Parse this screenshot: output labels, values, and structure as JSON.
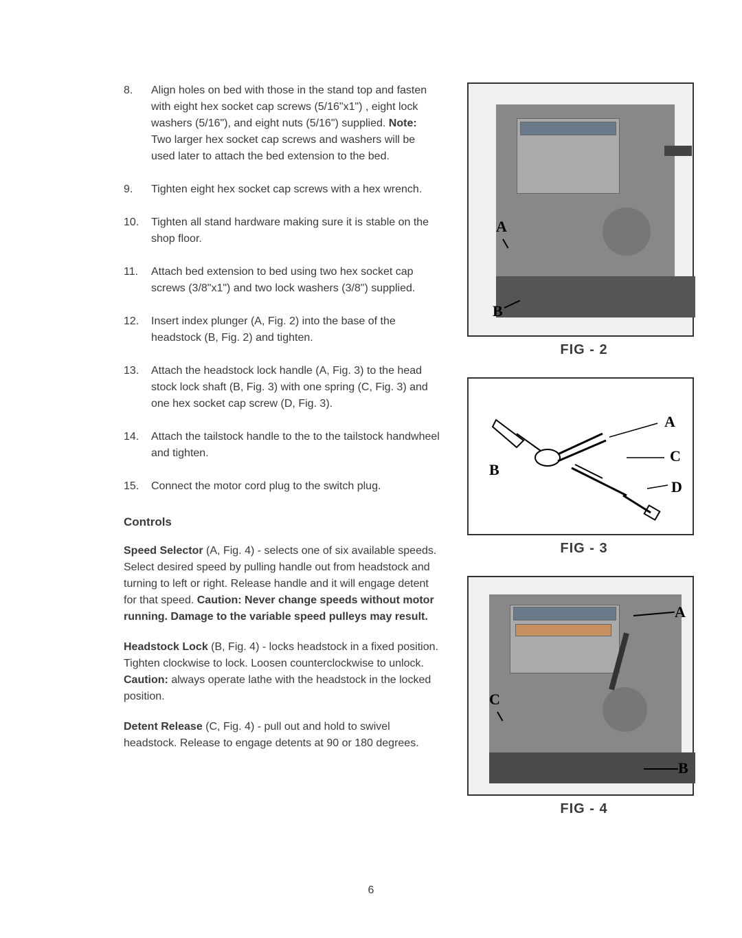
{
  "listItems": [
    {
      "num": "8.",
      "text": "Align holes on bed with those in the stand top and fasten with eight hex socket cap screws (5/16\"x1\") , eight lock washers (5/16\"), and eight nuts (5/16\") supplied. ",
      "bold": "Note:",
      "textAfter": " Two larger hex socket cap screws and washers will be used later to attach the bed extension to the bed."
    },
    {
      "num": "9.",
      "text": "Tighten eight hex socket cap screws with a hex wrench."
    },
    {
      "num": "10.",
      "text": "Tighten all stand hardware making sure it is stable on the shop floor."
    },
    {
      "num": "11.",
      "text": "Attach bed extension to bed using two hex socket cap screws (3/8\"x1\") and two lock washers (3/8\") supplied."
    },
    {
      "num": "12.",
      "text": "Insert index plunger (A, Fig. 2) into the base of the headstock (B, Fig. 2) and tighten."
    },
    {
      "num": "13.",
      "text": "Attach the headstock lock handle (A, Fig. 3) to the head stock lock shaft (B, Fig. 3) with one spring (C, Fig. 3) and one hex socket cap screw (D, Fig. 3)."
    },
    {
      "num": "14.",
      "text": "Attach the tailstock handle to the to the tailstock handwheel and tighten."
    },
    {
      "num": "15.",
      "text": "Connect the motor cord plug to the switch plug."
    }
  ],
  "controlsHeading": "Controls",
  "paragraphs": [
    {
      "lead": "Speed Selector",
      "text": " (A, Fig. 4) - selects one of six available speeds. Select desired speed by pulling handle out from headstock and turning to left or right. Release handle and it will engage detent for that speed. ",
      "caution": "Caution: Never change speeds without motor running. Damage to the variable speed pulleys may result."
    },
    {
      "lead": "Headstock Lock",
      "text": " (B, Fig. 4) - locks headstock in a fixed position. Tighten clockwise to lock. Loosen counterclockwise to unlock. ",
      "caution": "Caution:",
      "textAfter": " always operate lathe with the headstock in the locked position."
    },
    {
      "lead": "Detent Release",
      "text": " (C, Fig. 4) - pull out and hold to swivel headstock. Release to engage detents at 90 or 180 degrees."
    }
  ],
  "figures": {
    "fig2": {
      "caption": "FIG - 2",
      "labels": [
        "A",
        "B"
      ]
    },
    "fig3": {
      "caption": "FIG - 3",
      "labels": [
        "A",
        "B",
        "C",
        "D"
      ]
    },
    "fig4": {
      "caption": "FIG - 4",
      "labels": [
        "A",
        "B",
        "C"
      ]
    }
  },
  "pageNumber": "6"
}
